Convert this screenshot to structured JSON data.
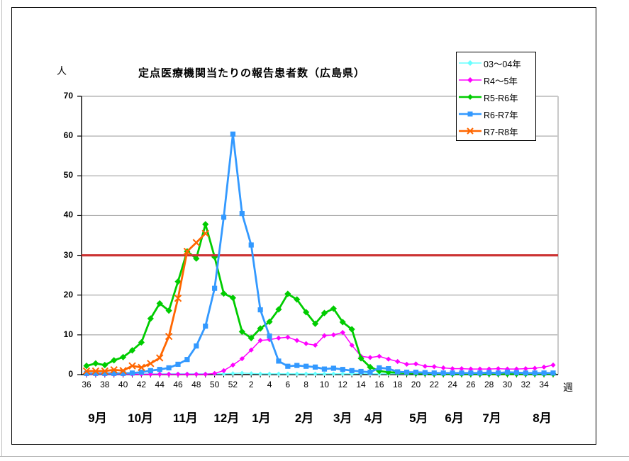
{
  "window": {
    "bg": "#ffffff",
    "frame_border": "#000000",
    "edge_color": "#c0c0c0"
  },
  "chart_data": {
    "type": "line",
    "title": "定点医療機関当たりの報告患者数（広島県）",
    "y_unit": "人",
    "x_unit": "週",
    "ylim": [
      0,
      70
    ],
    "y_ticks": [
      0,
      10,
      20,
      30,
      40,
      50,
      60,
      70
    ],
    "grid": "on",
    "grid_color": "#969696",
    "legend_position": "top-right",
    "alert_line": {
      "value": 30,
      "color": "#cc3333"
    },
    "x_tick_interval": 2,
    "categories": [
      36,
      37,
      38,
      39,
      40,
      41,
      42,
      43,
      44,
      45,
      46,
      47,
      48,
      49,
      50,
      51,
      52,
      1,
      2,
      3,
      4,
      5,
      6,
      7,
      8,
      9,
      10,
      11,
      12,
      13,
      14,
      15,
      16,
      17,
      18,
      19,
      20,
      21,
      22,
      23,
      24,
      25,
      26,
      27,
      28,
      29,
      30,
      31,
      32,
      33,
      34,
      35
    ],
    "months": [
      {
        "label": "9月",
        "pos": 1.2
      },
      {
        "label": "10月",
        "pos": 5.9
      },
      {
        "label": "11月",
        "pos": 10.8
      },
      {
        "label": "12月",
        "pos": 15.3
      },
      {
        "label": "1月",
        "pos": 19.1
      },
      {
        "label": "2月",
        "pos": 23.8
      },
      {
        "label": "3月",
        "pos": 28.0
      },
      {
        "label": "4月",
        "pos": 31.4
      },
      {
        "label": "5月",
        "pos": 36.3
      },
      {
        "label": "6月",
        "pos": 40.2
      },
      {
        "label": "7月",
        "pos": 44.3
      },
      {
        "label": "8月",
        "pos": 49.8
      }
    ],
    "series": [
      {
        "name": "03～04年",
        "color": "#66ffff",
        "marker": "diamond",
        "line_width": 1.5,
        "marker_size": 3.2,
        "values": [
          0.2,
          0.2,
          0.2,
          0.2,
          0.2,
          0.2,
          0.2,
          0.2,
          0.2,
          0.2,
          0.2,
          0.2,
          0.2,
          0.2,
          0.2,
          0.2,
          0.3,
          0.4,
          0.3,
          0.2,
          0.2,
          0.2,
          0.2,
          0.2,
          0.2,
          0.2,
          0.2,
          0.2,
          0.2,
          0.2,
          0.3,
          0.2,
          0.2,
          0.2,
          0.2,
          0.2,
          0.2,
          0.2,
          0.2,
          0.2,
          0.2,
          0.2,
          0.2,
          0.2,
          0.2,
          0.2,
          0.2,
          0.2,
          0.2,
          0.2,
          0.2,
          0.2
        ]
      },
      {
        "name": "R4～5年",
        "color": "#ff00ff",
        "marker": "diamond",
        "line_width": 1.5,
        "marker_size": 3.6,
        "values": [
          0.1,
          0.1,
          0.1,
          0.1,
          0.1,
          0.1,
          0.1,
          0.1,
          0.1,
          0.1,
          0.1,
          0.1,
          0.1,
          0.1,
          0.3,
          1.0,
          2.4,
          4.0,
          6.2,
          8.6,
          8.8,
          9.2,
          9.4,
          8.6,
          7.8,
          7.4,
          9.8,
          10.0,
          10.6,
          7.4,
          4.6,
          4.3,
          4.6,
          3.9,
          3.3,
          2.6,
          2.7,
          2.1,
          2.0,
          1.7,
          1.5,
          1.5,
          1.4,
          1.4,
          1.4,
          1.5,
          1.4,
          1.4,
          1.5,
          1.6,
          1.9,
          2.4
        ]
      },
      {
        "name": "R5-R6年",
        "color": "#00cc00",
        "marker": "diamond",
        "line_width": 2.8,
        "marker_size": 4.6,
        "values": [
          2.2,
          2.8,
          2.4,
          3.6,
          4.4,
          6.1,
          8.1,
          14.1,
          17.9,
          16.1,
          23.4,
          31.0,
          29.2,
          37.8,
          29.6,
          20.4,
          19.3,
          10.8,
          9.2,
          11.6,
          13.3,
          16.4,
          20.3,
          18.9,
          15.7,
          12.8,
          15.5,
          16.6,
          13.2,
          11.4,
          4.1,
          1.9,
          0.9,
          0.6,
          0.5,
          0.4,
          0.3,
          0.3,
          0.2,
          0.2,
          0.2,
          0.2,
          0.2,
          0.2,
          0.2,
          0.2,
          0.2,
          0.2,
          0.2,
          0.2,
          0.2,
          0.2
        ]
      },
      {
        "name": "R6-R7年",
        "color": "#3399ff",
        "marker": "square",
        "line_width": 2.8,
        "marker_size": 3.6,
        "values": [
          0.3,
          0.3,
          0.3,
          0.3,
          0.3,
          0.4,
          0.6,
          1.0,
          1.3,
          1.7,
          2.6,
          3.8,
          7.2,
          12.2,
          21.7,
          39.6,
          60.5,
          40.5,
          32.6,
          16.3,
          9.7,
          3.4,
          2.1,
          2.3,
          2.1,
          1.9,
          1.4,
          1.6,
          1.3,
          1.0,
          0.8,
          0.6,
          1.7,
          1.5,
          0.7,
          0.6,
          0.6,
          0.5,
          0.4,
          0.4,
          0.4,
          0.4,
          0.4,
          0.4,
          0.5,
          0.4,
          0.6,
          0.5,
          0.4,
          0.4,
          0.4,
          0.4
        ]
      },
      {
        "name": "R7-R8年",
        "color": "#ff6600",
        "marker": "x",
        "line_width": 2.8,
        "marker_size": 4.5,
        "values": [
          0.9,
          0.9,
          0.9,
          1.2,
          1.0,
          2.2,
          1.8,
          2.8,
          4.2,
          9.6,
          19.2,
          31.0,
          33.2,
          35.5
        ]
      }
    ]
  }
}
